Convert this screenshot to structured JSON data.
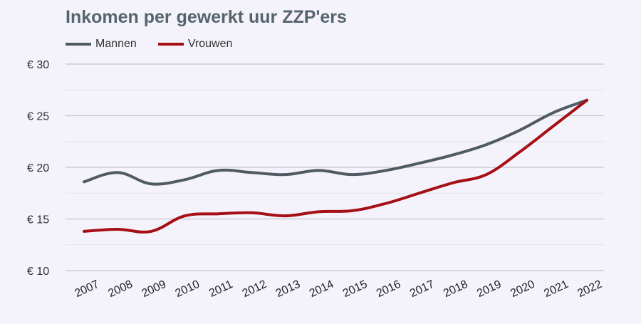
{
  "chart_data": {
    "type": "line",
    "title": "Inkomen per gewerkt uur ZZP'ers",
    "xlabel": "",
    "ylabel": "",
    "categories": [
      "2007",
      "2008",
      "2009",
      "2010",
      "2011",
      "2012",
      "2013",
      "2014",
      "2015",
      "2016",
      "2017",
      "2018",
      "2019",
      "2020",
      "2021",
      "2022"
    ],
    "y_ticks": [
      10,
      15,
      20,
      25,
      30
    ],
    "y_tick_labels": [
      "€ 10",
      "€ 15",
      "€ 20",
      "€ 25",
      "€ 30"
    ],
    "ylim": [
      10,
      30
    ],
    "grid": true,
    "legend_position": "top-left",
    "series": [
      {
        "name": "Mannen",
        "color": "#4f5b62",
        "values": [
          18.6,
          19.5,
          18.4,
          18.8,
          19.7,
          19.5,
          19.3,
          19.7,
          19.3,
          19.7,
          20.4,
          21.2,
          22.2,
          23.6,
          25.3,
          26.5
        ]
      },
      {
        "name": "Vrouwen",
        "color": "#a50f15",
        "values": [
          13.8,
          14.0,
          13.8,
          15.3,
          15.5,
          15.6,
          15.3,
          15.7,
          15.8,
          16.5,
          17.5,
          18.5,
          19.3,
          21.5,
          24.0,
          26.5
        ]
      }
    ]
  }
}
